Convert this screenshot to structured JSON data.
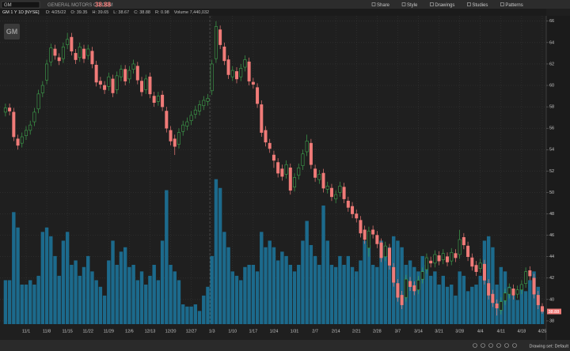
{
  "toolbar": {
    "symbol": "GM",
    "company": "GENERAL MOTORS CO COM",
    "last": "38.88",
    "buttons": [
      "Share",
      "Style",
      "Drawings",
      "Studies",
      "Patterns"
    ]
  },
  "info": {
    "symbol_info": "GM 1 Y 1D [NYSE]",
    "items": [
      "D: 4/25/22",
      "O: 39.35",
      "H: 39.65",
      "L: 38.67",
      "C: 38.88",
      "R: 0.98",
      "Volume 7,440,032"
    ]
  },
  "logo": "GM",
  "footer": "Drawing set: Default",
  "chart_data": {
    "type": "candlestick",
    "categories": [
      null,
      null,
      null,
      null,
      null,
      "11/1",
      null,
      null,
      null,
      null,
      "11/8",
      null,
      null,
      null,
      null,
      "11/15",
      null,
      null,
      null,
      null,
      "11/22",
      null,
      null,
      null,
      null,
      "11/29",
      null,
      null,
      null,
      null,
      "12/6",
      null,
      null,
      null,
      null,
      "12/13",
      null,
      null,
      null,
      null,
      "12/20",
      null,
      null,
      null,
      null,
      "12/27",
      null,
      null,
      null,
      null,
      "1/3",
      null,
      null,
      null,
      null,
      "1/10",
      null,
      null,
      null,
      null,
      "1/17",
      null,
      null,
      null,
      null,
      "1/24",
      null,
      null,
      null,
      null,
      "1/31",
      null,
      null,
      null,
      null,
      "2/7",
      null,
      null,
      null,
      null,
      "2/14",
      null,
      null,
      null,
      null,
      "2/21",
      null,
      null,
      null,
      null,
      "2/28",
      null,
      null,
      null,
      null,
      "3/7",
      null,
      null,
      null,
      null,
      "3/14",
      null,
      null,
      null,
      null,
      "3/21",
      null,
      null,
      null,
      null,
      "3/28",
      null,
      null,
      null,
      null,
      "4/4",
      null,
      null,
      null,
      null,
      "4/11",
      null,
      null,
      null,
      null,
      "4/18",
      null,
      null,
      null,
      null,
      "4/25"
    ],
    "open": [
      57.5,
      57.9,
      57.5,
      55.0,
      54.6,
      55.3,
      55.8,
      56.6,
      57.8,
      59.3,
      60.5,
      62.2,
      63.4,
      62.6,
      62.5,
      63.8,
      64.5,
      63.0,
      62.6,
      63.4,
      62.8,
      63.2,
      61.9,
      60.4,
      60.0,
      59.9,
      60.6,
      59.6,
      60.8,
      61.5,
      60.6,
      61.5,
      61.8,
      60.4,
      59.6,
      60.8,
      59.0,
      58.5,
      59.1,
      57.6,
      55.8,
      55.0,
      54.5,
      55.7,
      56.2,
      56.7,
      57.3,
      57.6,
      58.1,
      58.5,
      59.5,
      62.5,
      65.2,
      63.6,
      62.4,
      60.8,
      61.3,
      60.8,
      61.7,
      62.2,
      60.3,
      59.8,
      58.2,
      55.8,
      54.6,
      53.5,
      52.8,
      52.2,
      51.7,
      52.3,
      50.5,
      51.6,
      52.5,
      53.8,
      54.6,
      52.2,
      51.2,
      51.8,
      50.3,
      50.4,
      49.4,
      50.0,
      50.5,
      49.2,
      48.7,
      48.0,
      47.4,
      46.5,
      44.8,
      46.5,
      46.0,
      45.3,
      44.0,
      44.8,
      43.0,
      41.5,
      40.4,
      40.2,
      41.7,
      41.3,
      40.9,
      41.9,
      42.8,
      43.6,
      43.4,
      44.1,
      43.7,
      44.0,
      43.6,
      44.3,
      44.2,
      45.8,
      45.0,
      43.9,
      43.2,
      42.9,
      43.3,
      41.5,
      40.5,
      39.6,
      39.0,
      39.9,
      40.5,
      41.0,
      40.5,
      40.9,
      41.5,
      42.7,
      42.0,
      40.4,
      39.35
    ],
    "high": [
      58.3,
      58.3,
      57.9,
      55.4,
      55.6,
      56.2,
      56.7,
      57.9,
      59.6,
      60.4,
      62.4,
      63.9,
      63.8,
      63.0,
      64.0,
      64.9,
      64.9,
      63.4,
      64.0,
      63.8,
      63.8,
      63.6,
      62.3,
      60.8,
      60.4,
      61.2,
      61.0,
      61.3,
      61.9,
      61.9,
      61.8,
      62.4,
      62.2,
      60.8,
      61.0,
      61.2,
      59.4,
      59.4,
      59.5,
      58.0,
      56.2,
      55.4,
      56.0,
      56.7,
      57.0,
      57.6,
      58.1,
      58.6,
      59.0,
      59.2,
      62.4,
      66.0,
      65.6,
      64.0,
      62.8,
      61.8,
      61.7,
      62.0,
      62.8,
      62.6,
      60.7,
      60.2,
      58.6,
      56.2,
      55.0,
      53.9,
      53.2,
      52.6,
      53.0,
      52.7,
      51.8,
      52.7,
      54.0,
      55.4,
      55.0,
      52.6,
      52.1,
      52.2,
      51.0,
      50.8,
      50.2,
      51.0,
      50.9,
      49.6,
      49.1,
      48.4,
      47.8,
      46.9,
      46.8,
      46.9,
      46.4,
      45.7,
      45.4,
      45.2,
      43.4,
      41.9,
      40.8,
      42.3,
      42.1,
      41.7,
      42.2,
      43.0,
      44.3,
      44.0,
      44.6,
      44.5,
      44.7,
      44.4,
      44.8,
      44.7,
      46.5,
      46.2,
      45.4,
      44.3,
      43.6,
      43.8,
      43.7,
      41.9,
      40.9,
      40.0,
      40.2,
      41.0,
      41.5,
      41.4,
      41.3,
      41.8,
      43.0,
      43.1,
      42.4,
      40.8,
      39.65
    ],
    "low": [
      57.1,
      57.2,
      54.8,
      54.0,
      54.2,
      54.9,
      55.4,
      56.2,
      57.4,
      58.9,
      60.1,
      61.8,
      62.4,
      61.9,
      62.1,
      63.4,
      62.8,
      62.0,
      62.2,
      62.1,
      62.4,
      61.6,
      59.9,
      59.7,
      59.2,
      59.5,
      58.9,
      59.2,
      60.4,
      60.0,
      60.2,
      61.1,
      60.1,
      59.0,
      59.2,
      58.8,
      58.0,
      58.1,
      57.6,
      55.6,
      54.4,
      53.5,
      54.1,
      55.3,
      55.8,
      56.3,
      56.9,
      57.2,
      57.7,
      58.1,
      59.1,
      62.1,
      63.4,
      61.9,
      60.6,
      60.4,
      60.2,
      60.4,
      61.3,
      60.0,
      59.7,
      57.9,
      55.2,
      54.3,
      53.7,
      52.3,
      51.4,
      51.1,
      51.3,
      49.8,
      50.1,
      51.2,
      52.1,
      53.4,
      52.2,
      51.0,
      50.8,
      50.0,
      49.9,
      49.2,
      49.0,
      49.6,
      49.0,
      48.2,
      47.6,
      47.2,
      45.8,
      45.2,
      44.0,
      45.7,
      44.8,
      43.5,
      43.6,
      42.8,
      41.2,
      39.8,
      39.1,
      39.8,
      40.8,
      40.4,
      40.5,
      41.5,
      42.4,
      43.0,
      43.0,
      43.2,
      43.3,
      43.1,
      43.2,
      43.5,
      43.8,
      44.7,
      43.6,
      42.7,
      42.2,
      42.5,
      41.4,
      40.0,
      39.3,
      38.5,
      38.6,
      39.5,
      40.1,
      40.0,
      40.1,
      40.5,
      41.1,
      41.8,
      40.1,
      39.1,
      38.67
    ],
    "close": [
      57.9,
      57.6,
      55.2,
      54.4,
      55.2,
      55.8,
      56.3,
      57.5,
      59.2,
      60.0,
      62.0,
      63.5,
      62.8,
      62.3,
      63.6,
      64.3,
      63.2,
      62.4,
      63.6,
      62.5,
      63.4,
      62.0,
      60.3,
      60.1,
      59.6,
      60.8,
      59.3,
      60.9,
      61.5,
      60.4,
      61.4,
      62.0,
      60.5,
      59.4,
      60.6,
      59.2,
      58.4,
      59.0,
      58.0,
      56.0,
      54.8,
      54.3,
      55.6,
      56.3,
      56.6,
      57.2,
      57.7,
      58.2,
      58.6,
      58.8,
      62.0,
      65.5,
      63.8,
      62.3,
      61.0,
      61.4,
      60.6,
      61.6,
      62.4,
      60.4,
      60.1,
      58.3,
      55.6,
      54.7,
      54.1,
      53.0,
      51.8,
      51.5,
      52.6,
      50.2,
      51.4,
      52.3,
      53.6,
      54.8,
      52.6,
      51.4,
      51.7,
      50.4,
      50.6,
      49.6,
      49.8,
      50.6,
      49.4,
      48.6,
      48.0,
      47.6,
      46.2,
      45.6,
      46.4,
      46.1,
      45.2,
      43.9,
      45.0,
      43.2,
      41.6,
      40.2,
      39.5,
      41.9,
      41.2,
      40.8,
      41.8,
      42.6,
      43.9,
      43.4,
      44.2,
      43.6,
      44.3,
      43.5,
      44.4,
      43.9,
      45.6,
      45.1,
      44.0,
      43.1,
      42.6,
      43.4,
      41.8,
      40.4,
      39.7,
      39.2,
      39.8,
      40.6,
      41.1,
      40.4,
      40.9,
      41.4,
      42.6,
      42.2,
      40.5,
      39.5,
      38.88
    ],
    "volume": [
      20000000,
      20000000,
      51000000,
      44000000,
      18000000,
      18000000,
      20000000,
      18000000,
      22000000,
      42000000,
      44000000,
      40000000,
      31000000,
      22000000,
      38000000,
      42000000,
      27000000,
      29000000,
      22000000,
      26000000,
      31000000,
      24000000,
      20000000,
      17000000,
      13000000,
      29000000,
      38000000,
      27000000,
      33000000,
      35000000,
      26000000,
      27000000,
      20000000,
      24000000,
      18000000,
      22000000,
      27000000,
      20000000,
      38000000,
      61000000,
      27000000,
      24000000,
      20000000,
      9000000,
      8000000,
      8000000,
      9000000,
      6000000,
      13000000,
      17000000,
      31000000,
      66000000,
      62000000,
      42000000,
      35000000,
      24000000,
      22000000,
      20000000,
      26000000,
      27000000,
      27000000,
      24000000,
      42000000,
      35000000,
      38000000,
      35000000,
      29000000,
      33000000,
      31000000,
      27000000,
      24000000,
      27000000,
      38000000,
      47000000,
      36000000,
      31000000,
      27000000,
      54000000,
      38000000,
      27000000,
      26000000,
      31000000,
      27000000,
      31000000,
      26000000,
      24000000,
      29000000,
      38000000,
      36000000,
      27000000,
      26000000,
      38000000,
      31000000,
      35000000,
      40000000,
      38000000,
      35000000,
      27000000,
      29000000,
      26000000,
      24000000,
      31000000,
      27000000,
      22000000,
      24000000,
      18000000,
      22000000,
      17000000,
      18000000,
      13000000,
      24000000,
      22000000,
      15000000,
      17000000,
      18000000,
      22000000,
      38000000,
      40000000,
      35000000,
      18000000,
      26000000,
      24000000,
      17000000,
      13000000,
      11000000,
      18000000,
      15000000,
      20000000,
      24000000,
      17000000,
      7440032
    ],
    "up_color": "#3fa34d",
    "down_color": "#f07b78",
    "volume_color": "#1c6a8c",
    "ylim": [
      37.7,
      66.5
    ],
    "yticks": [
      38,
      40,
      42,
      44,
      46,
      48,
      50,
      52,
      54,
      56,
      58,
      60,
      62,
      64,
      66
    ],
    "grid": true
  }
}
